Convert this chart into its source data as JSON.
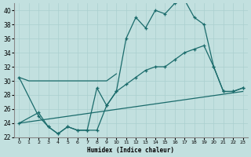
{
  "xlabel": "Humidex (Indice chaleur)",
  "xlim": [
    -0.5,
    23.5
  ],
  "ylim": [
    22,
    41
  ],
  "yticks": [
    22,
    24,
    26,
    28,
    30,
    32,
    34,
    36,
    38,
    40
  ],
  "xticks": [
    0,
    1,
    2,
    3,
    4,
    5,
    6,
    7,
    8,
    9,
    10,
    11,
    12,
    13,
    14,
    15,
    16,
    17,
    18,
    19,
    20,
    21,
    22,
    23
  ],
  "bg_color": "#c2e0df",
  "grid_color": "#aacfcf",
  "line_color": "#1a6b6b",
  "line1_x": [
    0,
    1,
    2,
    3,
    4,
    5,
    6,
    7,
    8,
    9,
    10
  ],
  "line1_y": [
    30.5,
    30,
    30,
    30,
    30,
    30,
    30,
    30,
    30,
    30,
    31
  ],
  "line2_x": [
    0,
    2,
    3,
    4,
    5,
    6,
    7,
    8,
    9,
    10,
    11,
    12,
    13,
    14,
    15,
    16,
    17,
    18,
    19,
    20,
    21,
    22,
    23
  ],
  "line2_y": [
    30.5,
    25,
    23.5,
    22.5,
    23.5,
    23.0,
    23.0,
    29.0,
    26.5,
    28.5,
    36.0,
    39.0,
    37.5,
    40.0,
    39.5,
    41.0,
    41.5,
    39.0,
    38.0,
    32.0,
    28.5,
    28.5,
    29.0
  ],
  "line3_x": [
    0,
    2,
    3,
    4,
    5,
    6,
    7,
    8,
    9,
    10,
    11,
    12,
    13,
    14,
    15,
    16,
    17,
    18,
    19,
    20,
    21,
    22,
    23
  ],
  "line3_y": [
    24.0,
    25.5,
    23.5,
    22.5,
    23.5,
    23.0,
    23.0,
    23.0,
    26.5,
    28.5,
    29.5,
    30.5,
    31.5,
    32.0,
    32.0,
    33.0,
    34.0,
    34.5,
    35.0,
    32.0,
    28.5,
    28.5,
    29.0
  ],
  "line4_x": [
    0,
    23
  ],
  "line4_y": [
    24.0,
    28.5
  ]
}
